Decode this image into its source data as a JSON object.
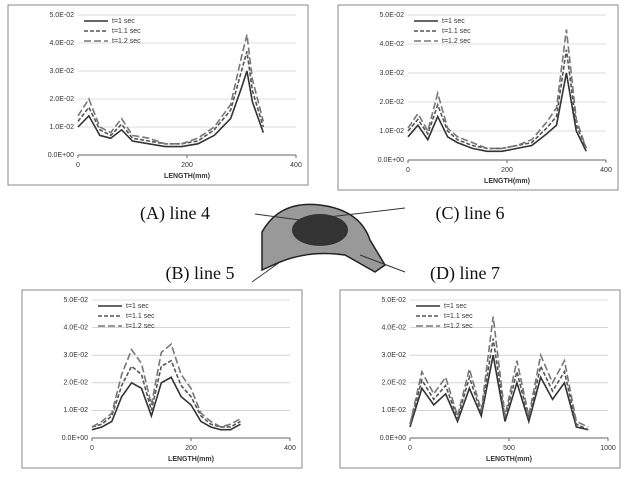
{
  "chart_data": [
    {
      "type": "line",
      "title": "(A) line 4",
      "x_label": "LENGTH(mm)",
      "xlim": [
        0,
        400
      ],
      "xticks": [
        0,
        200,
        400
      ],
      "ylim": [
        0,
        0.05
      ],
      "yticks": [
        {
          "value": 0,
          "label": "0.0E+00"
        },
        {
          "value": 0.01,
          "label": "1.0E-02"
        },
        {
          "value": 0.02,
          "label": "2.0E-02"
        },
        {
          "value": 0.03,
          "label": "3.0E-02"
        },
        {
          "value": 0.04,
          "label": "4.0E-02"
        },
        {
          "value": 0.05,
          "label": "5.0E-02"
        }
      ],
      "grid": true,
      "x": [
        0,
        20,
        40,
        60,
        80,
        100,
        130,
        160,
        190,
        220,
        250,
        280,
        300,
        310,
        320,
        340
      ],
      "series": [
        {
          "name": "t=1 sec",
          "color": "#333333",
          "values": [
            0.01,
            0.014,
            0.007,
            0.006,
            0.009,
            0.005,
            0.004,
            0.003,
            0.003,
            0.004,
            0.007,
            0.013,
            0.024,
            0.03,
            0.019,
            0.008
          ]
        },
        {
          "name": "t=1.1 sec",
          "color": "#555555",
          "values": [
            0.012,
            0.017,
            0.009,
            0.007,
            0.011,
            0.006,
            0.005,
            0.004,
            0.004,
            0.005,
            0.009,
            0.016,
            0.03,
            0.037,
            0.023,
            0.01
          ]
        },
        {
          "name": "t=1.2 sec",
          "color": "#777777",
          "values": [
            0.014,
            0.02,
            0.01,
            0.008,
            0.013,
            0.007,
            0.006,
            0.004,
            0.004,
            0.006,
            0.01,
            0.018,
            0.035,
            0.043,
            0.027,
            0.012
          ]
        }
      ]
    },
    {
      "type": "line",
      "title": "(C) line 6",
      "x_label": "LENGTH(mm)",
      "xlim": [
        0,
        400
      ],
      "xticks": [
        0,
        200,
        400
      ],
      "ylim": [
        0,
        0.05
      ],
      "yticks": [
        {
          "value": 0,
          "label": "0.0E+00"
        },
        {
          "value": 0.01,
          "label": "1.0E-02"
        },
        {
          "value": 0.02,
          "label": "2.0E-02"
        },
        {
          "value": 0.03,
          "label": "3.0E-02"
        },
        {
          "value": 0.04,
          "label": "4.0E-02"
        },
        {
          "value": 0.05,
          "label": "5.0E-02"
        }
      ],
      "grid": true,
      "x": [
        0,
        20,
        40,
        60,
        80,
        100,
        130,
        160,
        190,
        220,
        250,
        280,
        300,
        320,
        340,
        360
      ],
      "series": [
        {
          "name": "t=1 sec",
          "color": "#333333",
          "values": [
            0.008,
            0.012,
            0.007,
            0.015,
            0.008,
            0.006,
            0.004,
            0.003,
            0.003,
            0.004,
            0.005,
            0.009,
            0.012,
            0.03,
            0.01,
            0.003
          ]
        },
        {
          "name": "t=1.1 sec",
          "color": "#555555",
          "values": [
            0.01,
            0.014,
            0.009,
            0.019,
            0.01,
            0.007,
            0.005,
            0.004,
            0.004,
            0.005,
            0.006,
            0.011,
            0.015,
            0.038,
            0.012,
            0.004
          ]
        },
        {
          "name": "t=1.2 sec",
          "color": "#777777",
          "values": [
            0.011,
            0.016,
            0.01,
            0.023,
            0.011,
            0.008,
            0.006,
            0.004,
            0.004,
            0.005,
            0.007,
            0.013,
            0.018,
            0.045,
            0.014,
            0.004
          ]
        }
      ]
    },
    {
      "type": "line",
      "title": "(B) line 5",
      "x_label": "LENGTH(mm)",
      "xlim": [
        0,
        400
      ],
      "xticks": [
        0,
        200,
        400
      ],
      "ylim": [
        0,
        0.05
      ],
      "yticks": [
        {
          "value": 0,
          "label": "0.0E+00"
        },
        {
          "value": 0.01,
          "label": "1.0E-02"
        },
        {
          "value": 0.02,
          "label": "2.0E-02"
        },
        {
          "value": 0.03,
          "label": "3.0E-02"
        },
        {
          "value": 0.04,
          "label": "4.0E-02"
        },
        {
          "value": 0.05,
          "label": "5.0E-02"
        }
      ],
      "grid": true,
      "x": [
        0,
        20,
        40,
        60,
        80,
        100,
        120,
        140,
        160,
        180,
        200,
        220,
        240,
        260,
        280,
        300
      ],
      "series": [
        {
          "name": "t=1 sec",
          "color": "#333333",
          "values": [
            0.003,
            0.004,
            0.006,
            0.015,
            0.02,
            0.018,
            0.008,
            0.02,
            0.022,
            0.015,
            0.012,
            0.006,
            0.004,
            0.003,
            0.003,
            0.005
          ]
        },
        {
          "name": "t=1.1 sec",
          "color": "#555555",
          "values": [
            0.004,
            0.005,
            0.008,
            0.019,
            0.026,
            0.023,
            0.01,
            0.026,
            0.028,
            0.019,
            0.015,
            0.008,
            0.005,
            0.004,
            0.004,
            0.006
          ]
        },
        {
          "name": "t=1.2 sec",
          "color": "#777777",
          "values": [
            0.004,
            0.006,
            0.009,
            0.023,
            0.032,
            0.027,
            0.012,
            0.031,
            0.034,
            0.023,
            0.018,
            0.009,
            0.006,
            0.004,
            0.005,
            0.007
          ]
        }
      ]
    },
    {
      "type": "line",
      "title": "(D) line 7",
      "x_label": "LENGTH(mm)",
      "xlim": [
        0,
        1000
      ],
      "xticks": [
        0,
        500,
        1000
      ],
      "ylim": [
        0,
        0.05
      ],
      "yticks": [
        {
          "value": 0,
          "label": "0.0E+00"
        },
        {
          "value": 0.01,
          "label": "1.0E-02"
        },
        {
          "value": 0.02,
          "label": "2.0E-02"
        },
        {
          "value": 0.03,
          "label": "3.0E-02"
        },
        {
          "value": 0.04,
          "label": "4.0E-02"
        },
        {
          "value": 0.05,
          "label": "5.0E-02"
        }
      ],
      "grid": true,
      "x": [
        0,
        60,
        120,
        180,
        240,
        300,
        360,
        420,
        480,
        540,
        600,
        660,
        720,
        780,
        840,
        900
      ],
      "series": [
        {
          "name": "t=1 sec",
          "color": "#333333",
          "values": [
            0.004,
            0.018,
            0.012,
            0.016,
            0.006,
            0.018,
            0.008,
            0.03,
            0.006,
            0.02,
            0.006,
            0.022,
            0.014,
            0.02,
            0.004,
            0.003
          ]
        },
        {
          "name": "t=1.1 sec",
          "color": "#555555",
          "values": [
            0.005,
            0.021,
            0.014,
            0.019,
            0.007,
            0.022,
            0.009,
            0.036,
            0.007,
            0.024,
            0.007,
            0.026,
            0.017,
            0.024,
            0.005,
            0.003
          ]
        },
        {
          "name": "t=1.2 sec",
          "color": "#777777",
          "values": [
            0.005,
            0.024,
            0.016,
            0.022,
            0.008,
            0.025,
            0.01,
            0.044,
            0.008,
            0.028,
            0.008,
            0.03,
            0.02,
            0.028,
            0.006,
            0.004
          ]
        }
      ]
    }
  ]
}
